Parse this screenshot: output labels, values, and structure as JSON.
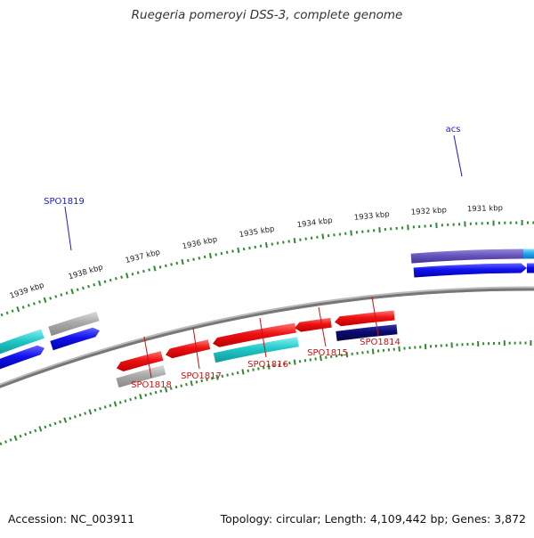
{
  "title": "Ruegeria pomeroyi DSS-3, complete genome",
  "accession": "Accession: NC_003911",
  "summary": "Topology: circular; Length: 4,109,442 bp; Genes: 3,872",
  "colors": {
    "backbone": "#777777",
    "tick": "#2f8a2f",
    "label_forward": "#1a1acc",
    "label_reverse": "#cc1111",
    "red": "#ee1111",
    "cyan": "#22c8c8",
    "blue": "#1111ee",
    "gray": "#aaaaaa",
    "navy": "#0a0a70",
    "purple": "#6655bb",
    "sky": "#22aaee"
  },
  "ticks": [
    {
      "label": "1931 kbp"
    },
    {
      "label": "1932 kbp"
    },
    {
      "label": "1933 kbp"
    },
    {
      "label": "1934 kbp"
    },
    {
      "label": "1935 kbp"
    },
    {
      "label": "1936 kbp"
    },
    {
      "label": "1937 kbp"
    },
    {
      "label": "1938 kbp"
    },
    {
      "label": "1939 kbp"
    }
  ],
  "gene_labels": [
    {
      "text": "acs",
      "strand": "forward"
    },
    {
      "text": "SPO1819",
      "strand": "forward"
    },
    {
      "text": "SPO1818",
      "strand": "reverse"
    },
    {
      "text": "SPO1817",
      "strand": "reverse"
    },
    {
      "text": "SPO1816",
      "strand": "reverse"
    },
    {
      "text": "SPO1815",
      "strand": "reverse"
    },
    {
      "text": "SPO1814",
      "strand": "reverse"
    }
  ]
}
